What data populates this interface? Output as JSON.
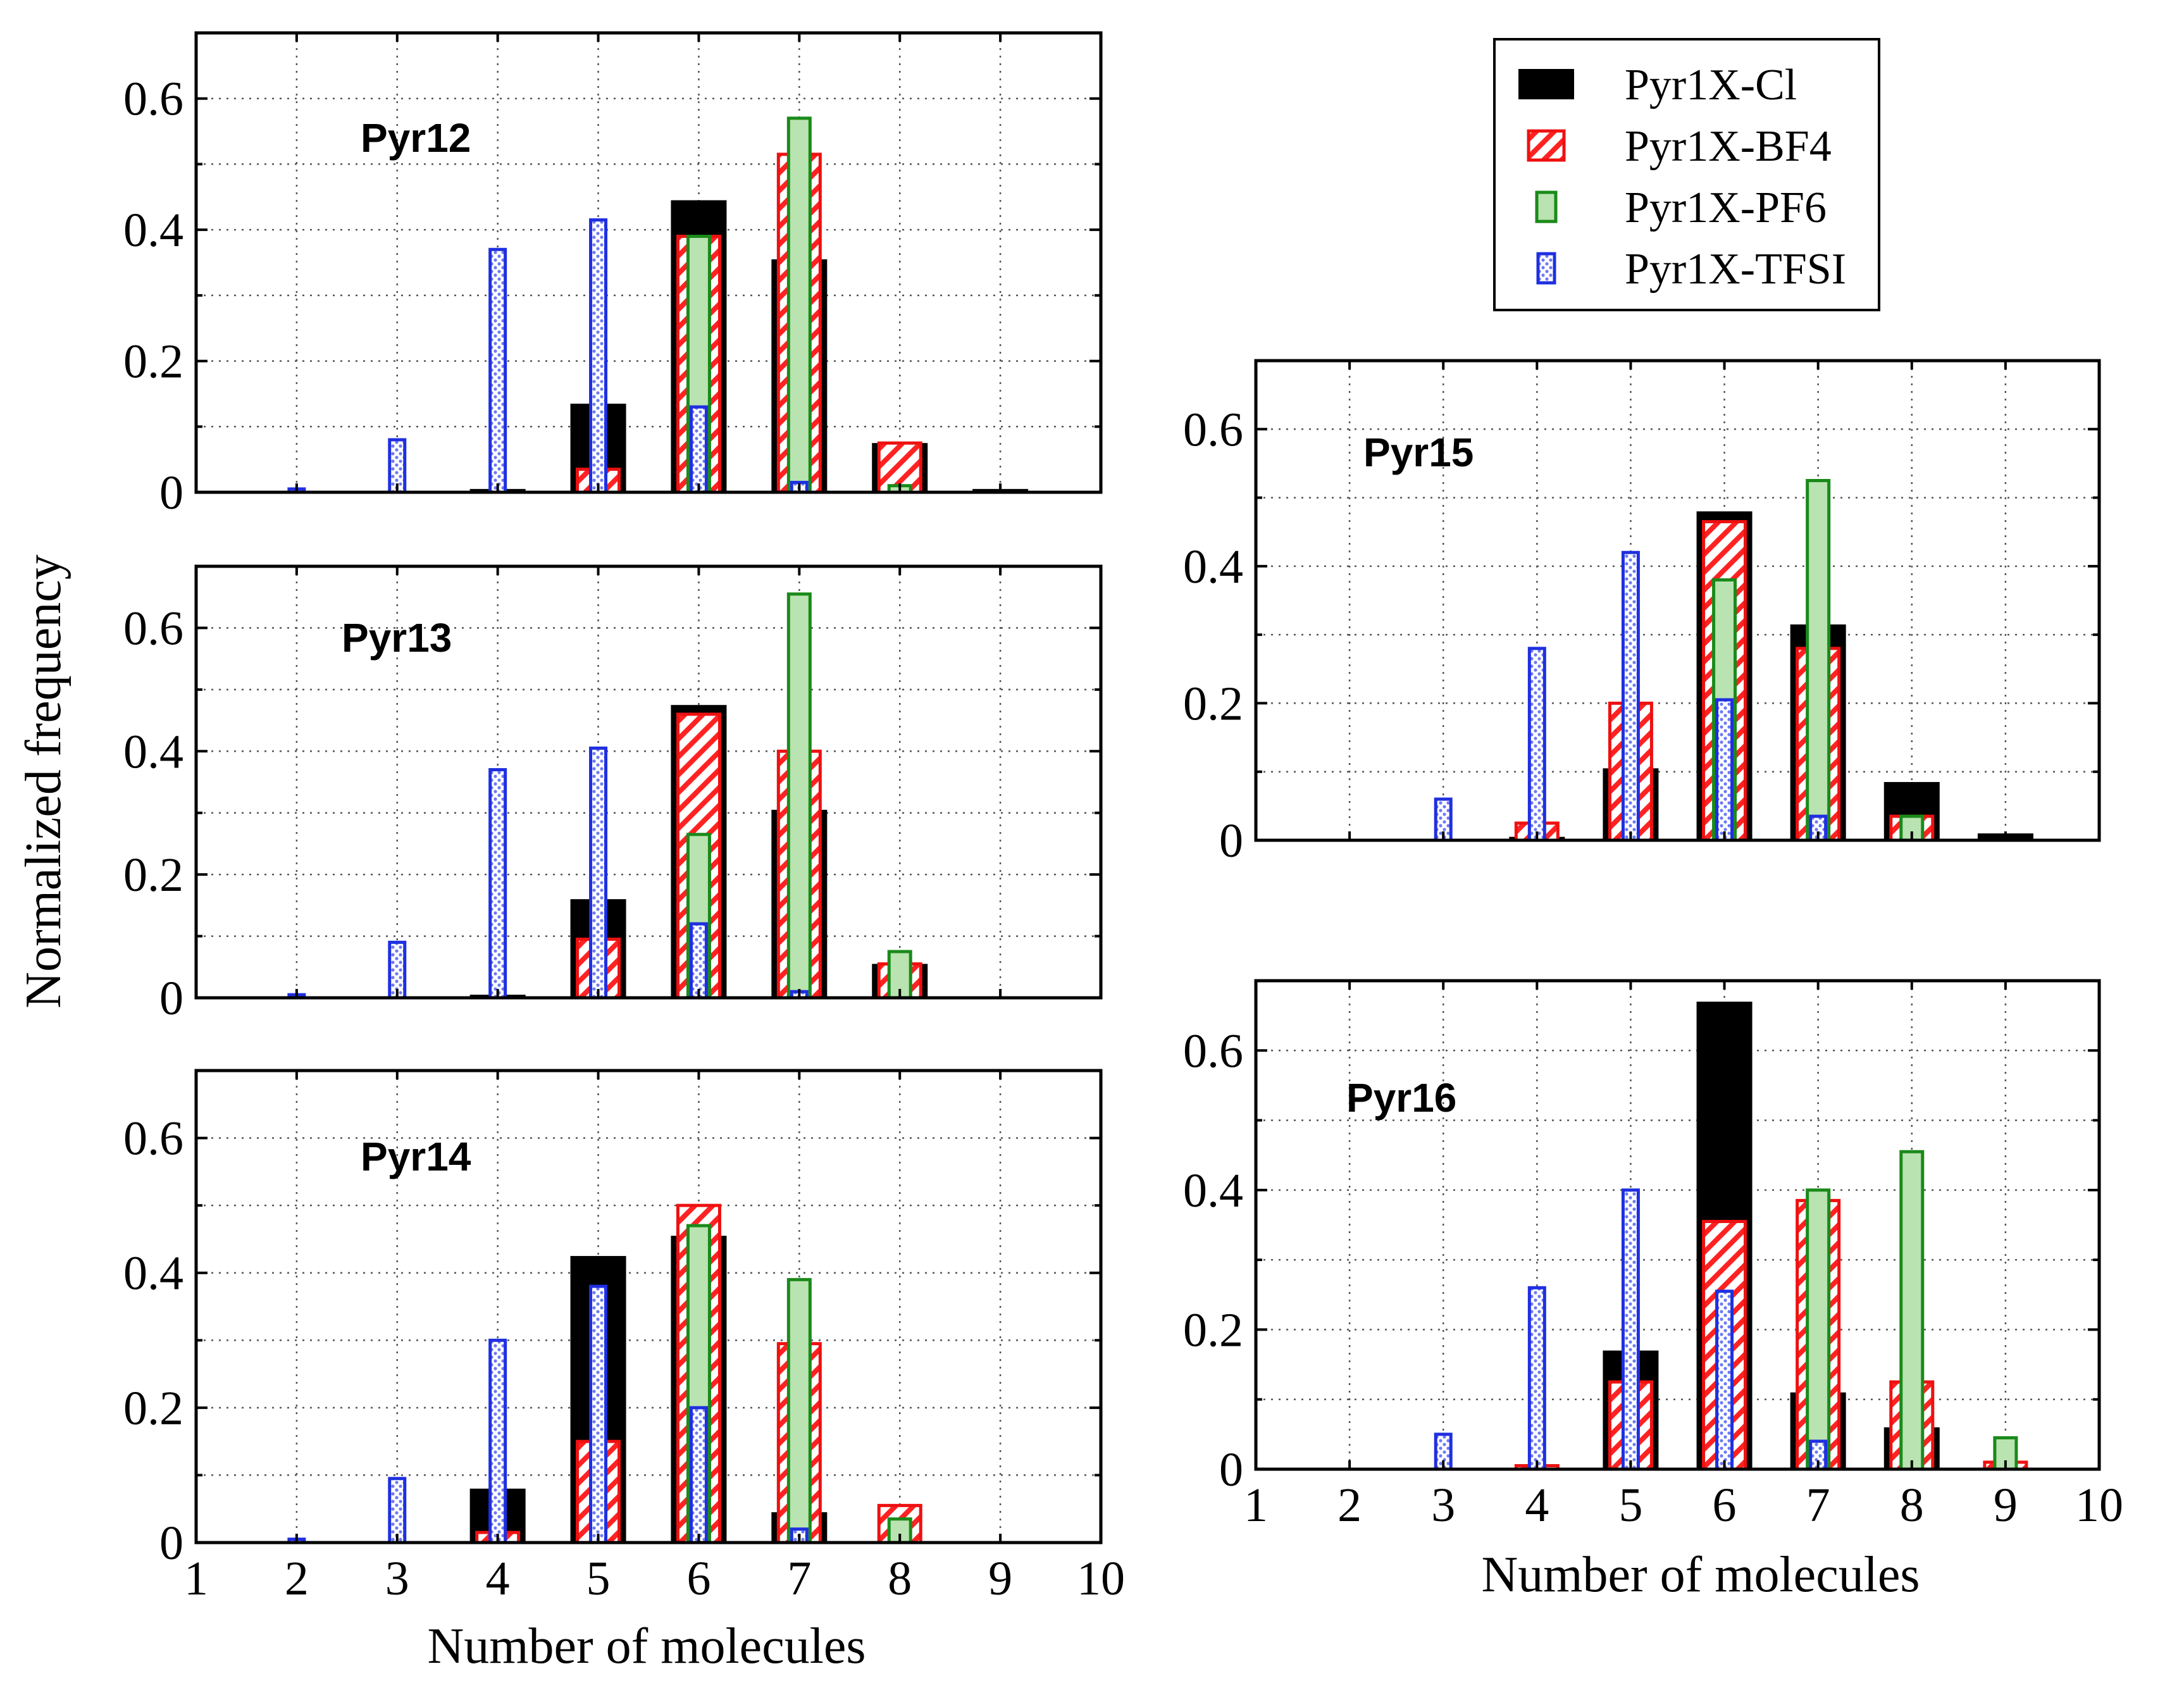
{
  "figure": {
    "y_label": "Normalized frequency",
    "x_label": "Number of molecules"
  },
  "legend": [
    {
      "label": "Pyr1X-Cl",
      "style": "cl"
    },
    {
      "label": "Pyr1X-BF4",
      "style": "bf4"
    },
    {
      "label": "Pyr1X-PF6",
      "style": "pf6"
    },
    {
      "label": "Pyr1X-TFSI",
      "style": "tfsi"
    }
  ],
  "colors": {
    "cl": "#000000",
    "bf4_edge": "#ee1111",
    "bf4_hatch": "#ff2222",
    "pf6_edge": "#1a8a1a",
    "pf6_fill": "#b9e3b0",
    "tfsi_edge": "#1f2fe0",
    "tfsi_dot": "#6d7bf2",
    "label": "#ee1111"
  },
  "chart_data": [
    {
      "type": "bar",
      "title": "Pyr12",
      "xlabel": "",
      "ylabel": "Normalized frequency",
      "xlim": [
        1,
        10
      ],
      "ylim": [
        0,
        0.7
      ],
      "categories": [
        2,
        3,
        4,
        5,
        6,
        7,
        8,
        9
      ],
      "series": [
        {
          "name": "Pyr1X-Cl",
          "values": [
            0,
            0,
            0.005,
            0.135,
            0.445,
            0.355,
            0.075,
            0.005
          ]
        },
        {
          "name": "Pyr1X-BF4",
          "values": [
            0,
            0,
            0,
            0.035,
            0.39,
            0.515,
            0.075,
            0
          ]
        },
        {
          "name": "Pyr1X-PF6",
          "values": [
            0,
            0,
            0,
            0,
            0.39,
            0.57,
            0.01,
            0
          ]
        },
        {
          "name": "Pyr1X-TFSI",
          "values": [
            0.005,
            0.08,
            0.37,
            0.415,
            0.13,
            0.015,
            0,
            0
          ]
        }
      ]
    },
    {
      "type": "bar",
      "title": "Pyr13",
      "xlabel": "",
      "ylabel": "Normalized frequency",
      "xlim": [
        1,
        10
      ],
      "ylim": [
        0,
        0.7
      ],
      "categories": [
        2,
        3,
        4,
        5,
        6,
        7,
        8,
        9
      ],
      "series": [
        {
          "name": "Pyr1X-Cl",
          "values": [
            0,
            0,
            0.005,
            0.16,
            0.475,
            0.305,
            0.055,
            0
          ]
        },
        {
          "name": "Pyr1X-BF4",
          "values": [
            0,
            0,
            0,
            0.095,
            0.46,
            0.4,
            0.055,
            0
          ]
        },
        {
          "name": "Pyr1X-PF6",
          "values": [
            0,
            0,
            0,
            0,
            0.265,
            0.655,
            0.075,
            0
          ]
        },
        {
          "name": "Pyr1X-TFSI",
          "values": [
            0.005,
            0.09,
            0.37,
            0.405,
            0.12,
            0.01,
            0,
            0
          ]
        }
      ]
    },
    {
      "type": "bar",
      "title": "Pyr14",
      "xlabel": "Number of molecules",
      "ylabel": "Normalized frequency",
      "xlim": [
        1,
        10
      ],
      "ylim": [
        0,
        0.7
      ],
      "categories": [
        2,
        3,
        4,
        5,
        6,
        7,
        8,
        9
      ],
      "series": [
        {
          "name": "Pyr1X-Cl",
          "values": [
            0,
            0,
            0.08,
            0.425,
            0.455,
            0.045,
            0,
            0
          ]
        },
        {
          "name": "Pyr1X-BF4",
          "values": [
            0,
            0,
            0.015,
            0.15,
            0.5,
            0.295,
            0.055,
            0
          ]
        },
        {
          "name": "Pyr1X-PF6",
          "values": [
            0,
            0,
            0,
            0,
            0.47,
            0.39,
            0.035,
            0
          ]
        },
        {
          "name": "Pyr1X-TFSI",
          "values": [
            0.005,
            0.095,
            0.3,
            0.38,
            0.2,
            0.02,
            0,
            0
          ]
        }
      ]
    },
    {
      "type": "bar",
      "title": "Pyr15",
      "xlabel": "",
      "ylabel": "Normalized frequency",
      "xlim": [
        1,
        10
      ],
      "ylim": [
        0,
        0.7
      ],
      "categories": [
        2,
        3,
        4,
        5,
        6,
        7,
        8,
        9
      ],
      "series": [
        {
          "name": "Pyr1X-Cl",
          "values": [
            0,
            0,
            0.005,
            0.105,
            0.48,
            0.315,
            0.085,
            0.01
          ]
        },
        {
          "name": "Pyr1X-BF4",
          "values": [
            0,
            0,
            0.025,
            0.2,
            0.465,
            0.28,
            0.035,
            0
          ]
        },
        {
          "name": "Pyr1X-PF6",
          "values": [
            0,
            0,
            0,
            0,
            0.38,
            0.525,
            0.035,
            0
          ]
        },
        {
          "name": "Pyr1X-TFSI",
          "values": [
            0,
            0.06,
            0.28,
            0.42,
            0.205,
            0.035,
            0,
            0
          ]
        }
      ]
    },
    {
      "type": "bar",
      "title": "Pyr16",
      "xlabel": "Number of molecules",
      "ylabel": "Normalized frequency",
      "xlim": [
        1,
        10
      ],
      "ylim": [
        0,
        0.7
      ],
      "categories": [
        2,
        3,
        4,
        5,
        6,
        7,
        8,
        9
      ],
      "series": [
        {
          "name": "Pyr1X-Cl",
          "values": [
            0,
            0,
            0,
            0.17,
            0.67,
            0.11,
            0.06,
            0
          ]
        },
        {
          "name": "Pyr1X-BF4",
          "values": [
            0,
            0,
            0.005,
            0.125,
            0.355,
            0.385,
            0.125,
            0.01
          ]
        },
        {
          "name": "Pyr1X-PF6",
          "values": [
            0,
            0,
            0,
            0,
            0,
            0.4,
            0.455,
            0.045
          ]
        },
        {
          "name": "Pyr1X-TFSI",
          "values": [
            0,
            0.05,
            0.26,
            0.4,
            0.255,
            0.04,
            0,
            0
          ]
        }
      ]
    }
  ]
}
